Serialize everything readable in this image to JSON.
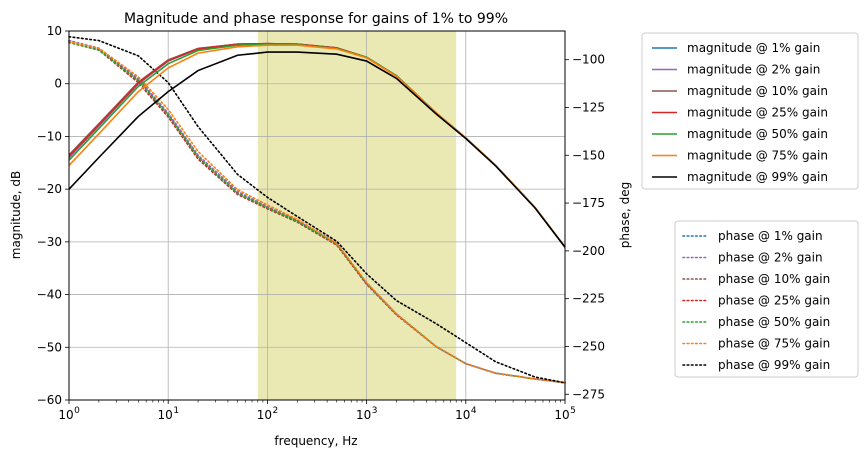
{
  "chart_data": {
    "type": "line",
    "title": "Magnitude and phase response for gains of 1% to 99%",
    "xlabel": "frequency, Hz",
    "ylabel": "magnitude, dB",
    "ylabel_right": "phase, deg",
    "xscale": "log",
    "xlim": [
      1,
      100000
    ],
    "ylim": [
      -60,
      10
    ],
    "ylim_right": [
      -278,
      -85
    ],
    "grid": true,
    "highlight_band": {
      "x_from": 80,
      "x_to": 8000,
      "color": "#d6d36a"
    },
    "x_ticks": [
      {
        "value": 1,
        "base": "10",
        "exp": "0"
      },
      {
        "value": 10,
        "base": "10",
        "exp": "1"
      },
      {
        "value": 100,
        "base": "10",
        "exp": "2"
      },
      {
        "value": 1000,
        "base": "10",
        "exp": "3"
      },
      {
        "value": 10000,
        "base": "10",
        "exp": "4"
      },
      {
        "value": 100000,
        "base": "10",
        "exp": "5"
      }
    ],
    "y_ticks": [
      {
        "value": 10,
        "label": "10"
      },
      {
        "value": 0,
        "label": "0"
      },
      {
        "value": -10,
        "label": "−10"
      },
      {
        "value": -20,
        "label": "−20"
      },
      {
        "value": -30,
        "label": "−30"
      },
      {
        "value": -40,
        "label": "−40"
      },
      {
        "value": -50,
        "label": "−50"
      },
      {
        "value": -60,
        "label": "−60"
      }
    ],
    "y_ticks_right": [
      {
        "value": -100,
        "label": "−100"
      },
      {
        "value": -125,
        "label": "−125"
      },
      {
        "value": -150,
        "label": "−150"
      },
      {
        "value": -175,
        "label": "−175"
      },
      {
        "value": -200,
        "label": "−200"
      },
      {
        "value": -225,
        "label": "−225"
      },
      {
        "value": -250,
        "label": "−250"
      },
      {
        "value": -275,
        "label": "−275"
      }
    ],
    "x": [
      1,
      2,
      5,
      10,
      20,
      50,
      100,
      200,
      500,
      1000,
      2000,
      5000,
      10000,
      20000,
      50000,
      100000
    ],
    "magnitude_series": [
      {
        "name": "magnitude @ 1% gain",
        "color": "#1f77b4",
        "values": [
          -14,
          -8,
          0,
          4.3,
          6.6,
          7.5,
          7.6,
          7.5,
          6.8,
          5.0,
          1.5,
          -5.5,
          -10.3,
          -15.5,
          -23.5,
          -31.0
        ]
      },
      {
        "name": "magnitude @ 2% gain",
        "color": "#9467bd",
        "values": [
          -14,
          -8,
          0,
          4.3,
          6.6,
          7.5,
          7.6,
          7.5,
          6.8,
          5.0,
          1.5,
          -5.5,
          -10.3,
          -15.5,
          -23.5,
          -31.0
        ]
      },
      {
        "name": "magnitude @ 10% gain",
        "color": "#8c564b",
        "values": [
          -13.5,
          -7.6,
          0.3,
          4.5,
          6.7,
          7.5,
          7.6,
          7.5,
          6.8,
          5.0,
          1.5,
          -5.5,
          -10.3,
          -15.5,
          -23.5,
          -31.0
        ]
      },
      {
        "name": "magnitude @ 25% gain",
        "color": "#d62728",
        "values": [
          -13.8,
          -7.8,
          0.1,
          4.4,
          6.6,
          7.5,
          7.6,
          7.5,
          6.8,
          5.0,
          1.5,
          -5.5,
          -10.3,
          -15.5,
          -23.5,
          -31.0
        ]
      },
      {
        "name": "magnitude @ 50% gain",
        "color": "#2ca02c",
        "values": [
          -14.5,
          -8.5,
          -0.5,
          3.8,
          6.3,
          7.3,
          7.5,
          7.4,
          6.7,
          5.0,
          1.5,
          -5.5,
          -10.3,
          -15.5,
          -23.5,
          -31.0
        ]
      },
      {
        "name": "magnitude @ 75% gain",
        "color": "#ff7f0e",
        "values": [
          -15.5,
          -9.5,
          -1.5,
          3.0,
          5.8,
          7.0,
          7.3,
          7.3,
          6.6,
          4.9,
          1.4,
          -5.5,
          -10.3,
          -15.5,
          -23.5,
          -31.0
        ]
      },
      {
        "name": "magnitude @ 99% gain",
        "color": "#000000",
        "values": [
          -20,
          -14,
          -6.2,
          -1.5,
          2.5,
          5.4,
          6.0,
          6.0,
          5.6,
          4.3,
          1.0,
          -5.7,
          -10.4,
          -15.6,
          -23.6,
          -31.0
        ]
      }
    ],
    "phase_series": [
      {
        "name": "phase @ 1% gain",
        "color": "#1f77b4",
        "values": [
          -90,
          -94,
          -110,
          -128,
          -150,
          -169,
          -177,
          -184,
          -196,
          -217,
          -233,
          -250,
          -259,
          -264,
          -267,
          -269
        ]
      },
      {
        "name": "phase @ 2% gain",
        "color": "#9467bd",
        "values": [
          -90,
          -94,
          -110,
          -128,
          -150,
          -169,
          -177,
          -184,
          -196,
          -217,
          -233,
          -250,
          -259,
          -264,
          -267,
          -269
        ]
      },
      {
        "name": "phase @ 10% gain",
        "color": "#8c564b",
        "values": [
          -90.5,
          -94.5,
          -111,
          -129,
          -151,
          -170,
          -177.5,
          -184.5,
          -196.5,
          -217,
          -233,
          -250,
          -259,
          -264,
          -267,
          -269
        ]
      },
      {
        "name": "phase @ 25% gain",
        "color": "#d62728",
        "values": [
          -91,
          -95,
          -112,
          -130,
          -152,
          -170.5,
          -178,
          -185,
          -197,
          -217.5,
          -233.5,
          -250,
          -259,
          -264,
          -267,
          -269
        ]
      },
      {
        "name": "phase @ 50% gain",
        "color": "#2ca02c",
        "values": [
          -91,
          -95,
          -111,
          -129,
          -151,
          -170,
          -177.5,
          -184.5,
          -196.5,
          -217,
          -233,
          -250,
          -259,
          -264,
          -267,
          -269
        ]
      },
      {
        "name": "phase @ 75% gain",
        "color": "#ff7f0e",
        "values": [
          -90.5,
          -94,
          -109,
          -126,
          -148,
          -168,
          -176,
          -183.5,
          -196,
          -216.5,
          -233,
          -250,
          -259,
          -264,
          -267,
          -269
        ]
      },
      {
        "name": "phase @ 99% gain",
        "color": "#000000",
        "values": [
          -88,
          -90,
          -98,
          -112,
          -135,
          -160,
          -172,
          -182,
          -195,
          -212,
          -226,
          -238,
          -248,
          -258,
          -266,
          -269
        ]
      }
    ]
  }
}
